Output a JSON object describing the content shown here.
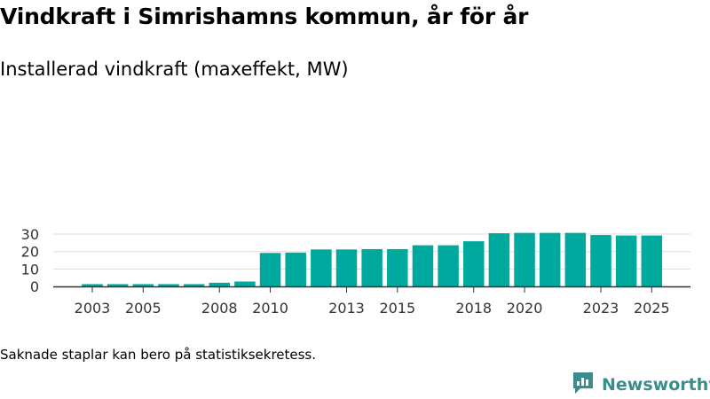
{
  "title": "Vindkraft i Simrishamns kommun, år för år",
  "subtitle": "Installerad vindkraft (maxeffekt, MW)",
  "note": "Saknade staplar kan bero på statistiksekretess.",
  "brand": {
    "name": "Newsworthy",
    "logo_icon": "newsworthy-logo-icon"
  },
  "colors": {
    "bar": "#00a99d",
    "grid": "#dddddd",
    "axis": "#333333",
    "brand": "#3b8d8c"
  },
  "chart_data": {
    "type": "bar",
    "title": "Vindkraft i Simrishamns kommun, år för år",
    "subtitle": "Installerad vindkraft (maxeffekt, MW)",
    "xlabel": "",
    "ylabel": "",
    "ylim": [
      0,
      33
    ],
    "y_ticks": [
      0,
      10,
      20,
      30
    ],
    "x_tick_labels": [
      2003,
      2005,
      2008,
      2010,
      2013,
      2015,
      2018,
      2020,
      2023,
      2025
    ],
    "grid": true,
    "categories": [
      2003,
      2004,
      2005,
      2006,
      2007,
      2008,
      2009,
      2010,
      2011,
      2012,
      2013,
      2014,
      2015,
      2016,
      2017,
      2018,
      2019,
      2020,
      2021,
      2022,
      2023,
      2024,
      2025
    ],
    "values": [
      1.3,
      1.3,
      1.3,
      1.3,
      1.3,
      2.1,
      2.8,
      19.2,
      19.4,
      21.2,
      21.2,
      21.4,
      21.4,
      23.6,
      23.6,
      25.9,
      30.5,
      30.7,
      30.7,
      30.7,
      29.5,
      29.2,
      29.2
    ]
  }
}
